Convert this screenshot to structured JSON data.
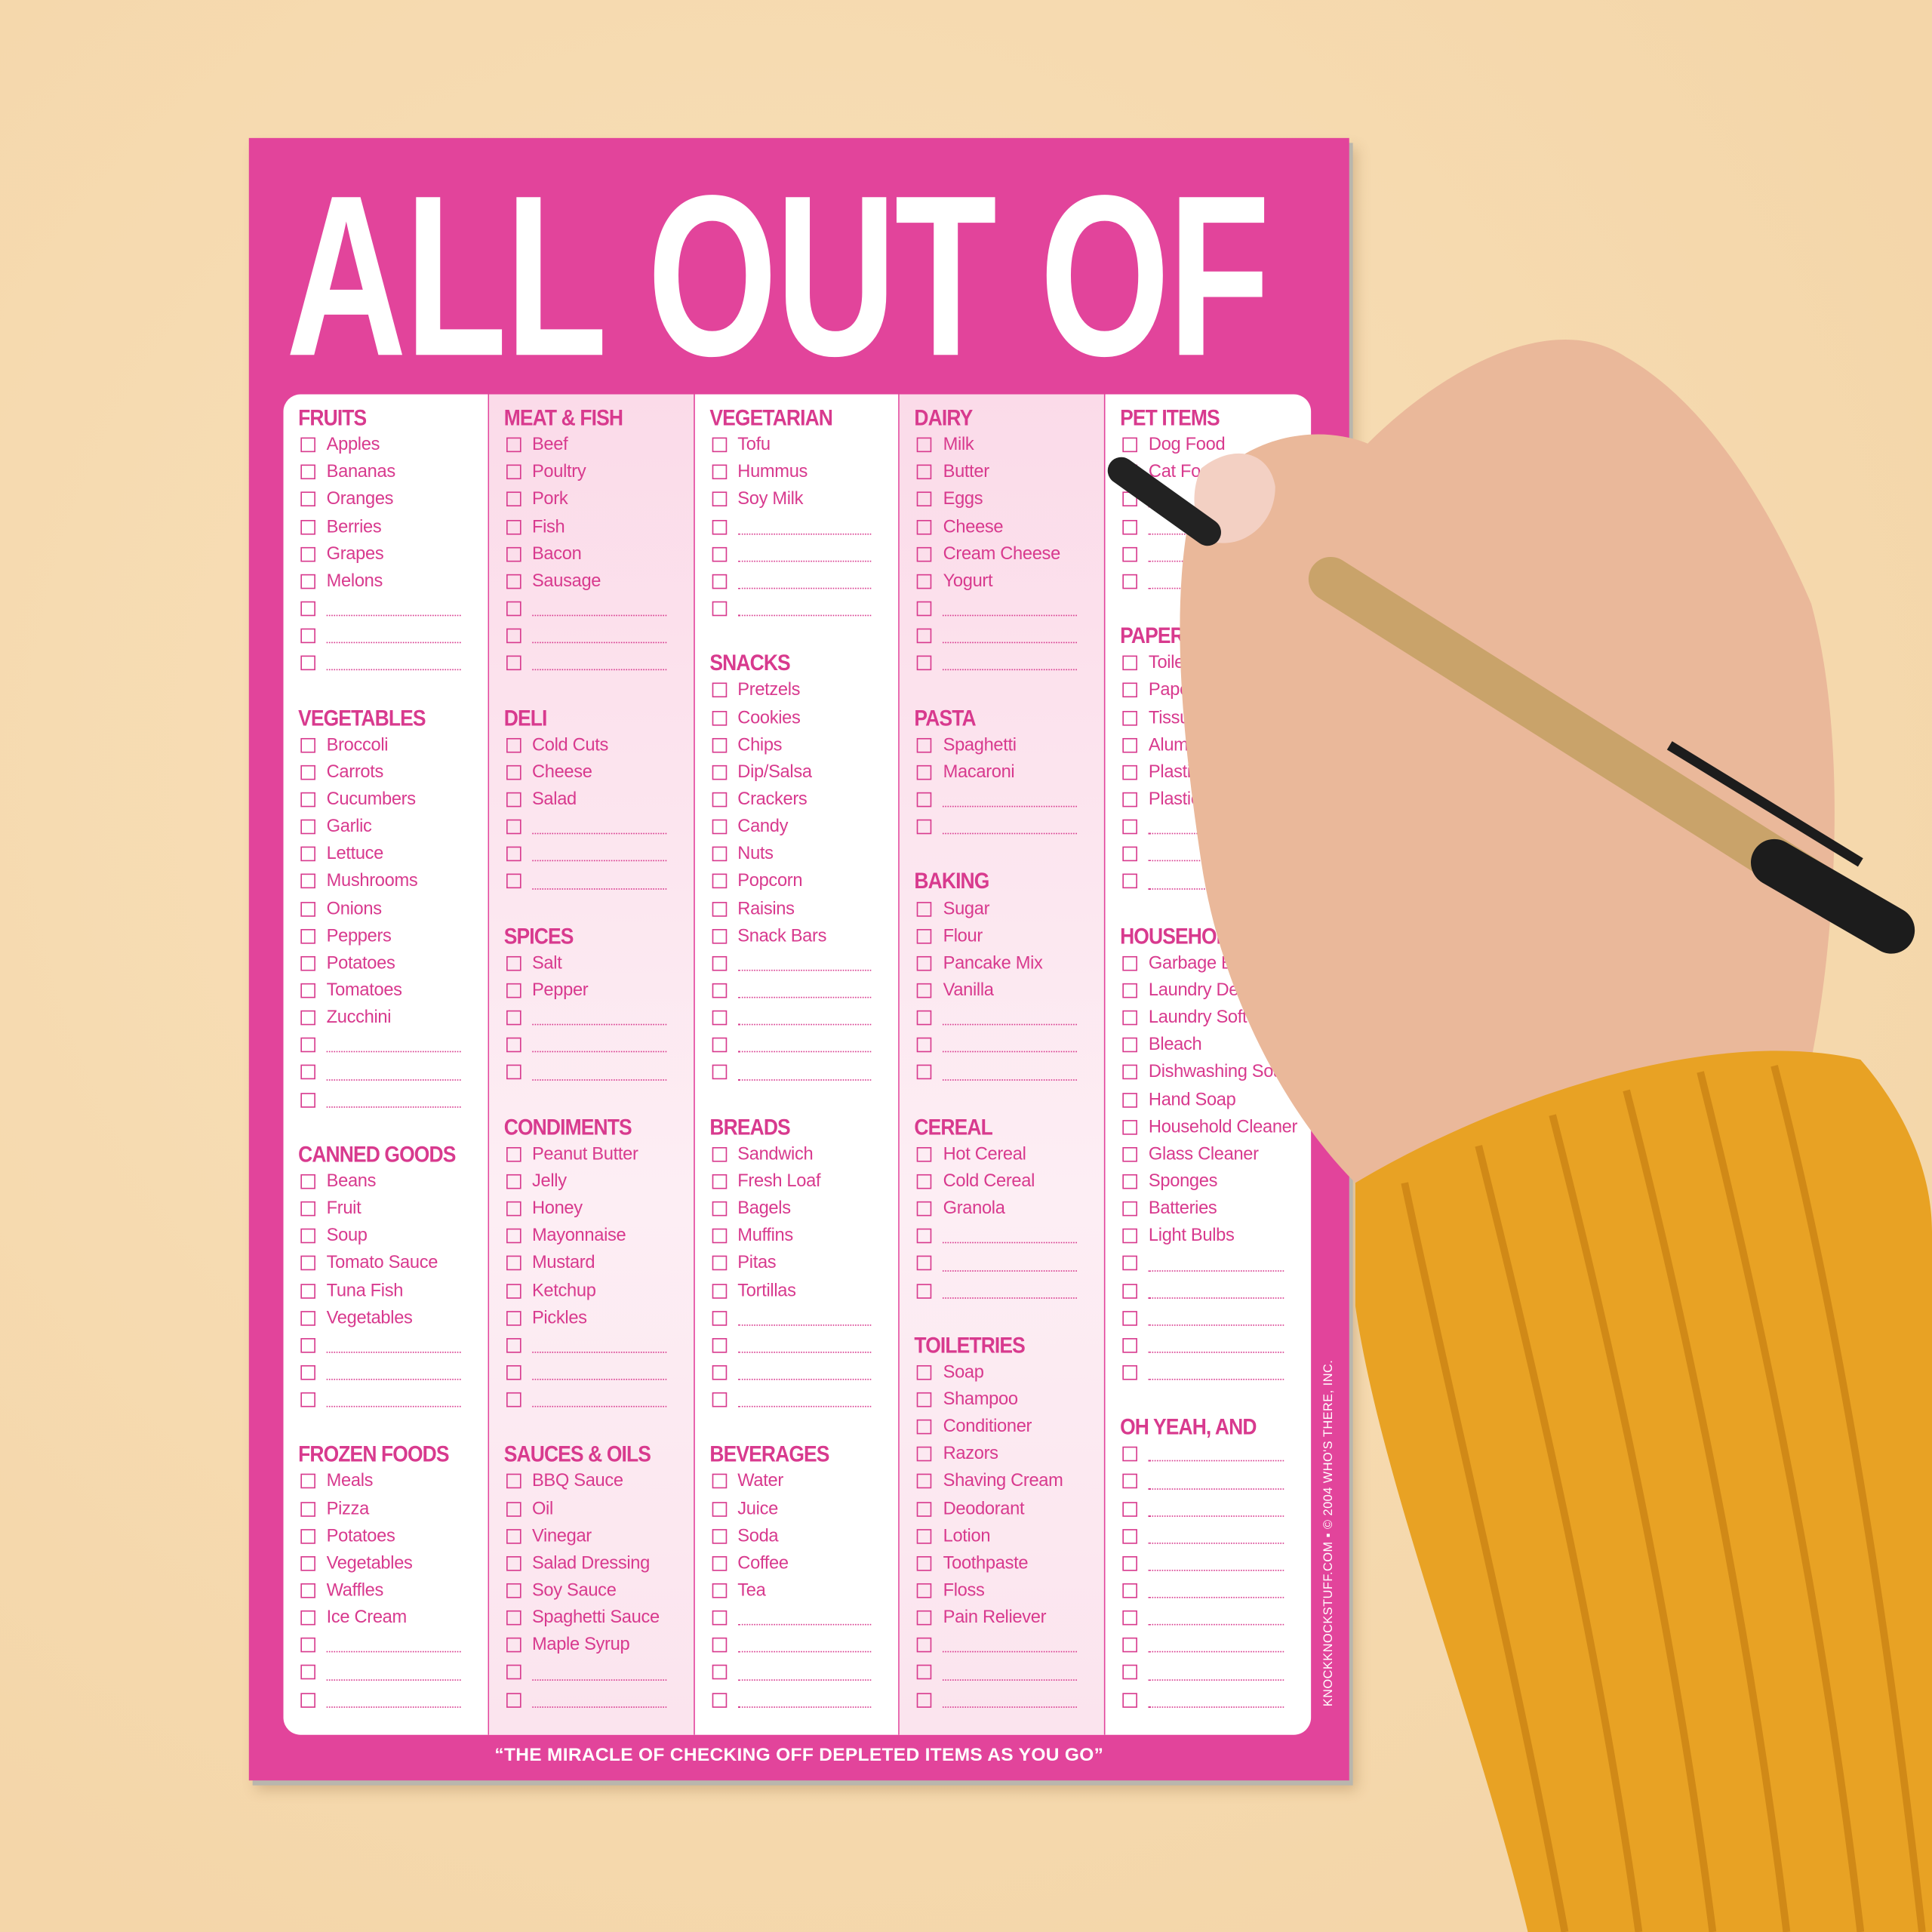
{
  "title": "ALL OUT OF",
  "footer_tagline": "“THE MIRACLE OF CHECKING OFF DEPLETED ITEMS AS YOU GO”",
  "copyright": "KNOCKKNOCKSTUFF.COM ▪ © 2004 WHO'S THERE, INC.",
  "colors": {
    "pad": "#e2449b",
    "text": "#d83a8e",
    "background": "#f6dab0",
    "sleeve": "#e8a224"
  },
  "columns": [
    {
      "sections": [
        {
          "title": "FRUITS",
          "items": [
            "Apples",
            "Bananas",
            "Oranges",
            "Berries",
            "Grapes",
            "Melons",
            "",
            "",
            ""
          ]
        },
        {
          "title": "VEGETABLES",
          "items": [
            "Broccoli",
            "Carrots",
            "Cucumbers",
            "Garlic",
            "Lettuce",
            "Mushrooms",
            "Onions",
            "Peppers",
            "Potatoes",
            "Tomatoes",
            "Zucchini",
            "",
            "",
            ""
          ]
        },
        {
          "title": "CANNED GOODS",
          "items": [
            "Beans",
            "Fruit",
            "Soup",
            "Tomato Sauce",
            "Tuna Fish",
            "Vegetables",
            "",
            "",
            ""
          ]
        },
        {
          "title": "FROZEN FOODS",
          "items": [
            "Meals",
            "Pizza",
            "Potatoes",
            "Vegetables",
            "Waffles",
            "Ice Cream",
            "",
            "",
            ""
          ]
        }
      ]
    },
    {
      "sections": [
        {
          "title": "MEAT & FISH",
          "items": [
            "Beef",
            "Poultry",
            "Pork",
            "Fish",
            "Bacon",
            "Sausage",
            "",
            "",
            ""
          ]
        },
        {
          "title": "DELI",
          "items": [
            "Cold Cuts",
            "Cheese",
            "Salad",
            "",
            "",
            ""
          ]
        },
        {
          "title": "SPICES",
          "items": [
            "Salt",
            "Pepper",
            "",
            "",
            ""
          ]
        },
        {
          "title": "CONDIMENTS",
          "items": [
            "Peanut Butter",
            "Jelly",
            "Honey",
            "Mayonnaise",
            "Mustard",
            "Ketchup",
            "Pickles",
            "",
            "",
            ""
          ]
        },
        {
          "title": "SAUCES & OILS",
          "items": [
            "BBQ Sauce",
            "Oil",
            "Vinegar",
            "Salad Dressing",
            "Soy Sauce",
            "Spaghetti Sauce",
            "Maple Syrup",
            "",
            ""
          ]
        }
      ]
    },
    {
      "sections": [
        {
          "title": "VEGETARIAN",
          "items": [
            "Tofu",
            "Hummus",
            "Soy Milk",
            "",
            "",
            "",
            ""
          ]
        },
        {
          "title": "SNACKS",
          "items": [
            "Pretzels",
            "Cookies",
            "Chips",
            "Dip/Salsa",
            "Crackers",
            "Candy",
            "Nuts",
            "Popcorn",
            "Raisins",
            "Snack Bars",
            "",
            "",
            "",
            "",
            ""
          ]
        },
        {
          "title": "BREADS",
          "items": [
            "Sandwich",
            "Fresh Loaf",
            "Bagels",
            "Muffins",
            "Pitas",
            "Tortillas",
            "",
            "",
            "",
            ""
          ]
        },
        {
          "title": "BEVERAGES",
          "items": [
            "Water",
            "Juice",
            "Soda",
            "Coffee",
            "Tea",
            "",
            "",
            "",
            ""
          ]
        }
      ]
    },
    {
      "sections": [
        {
          "title": "DAIRY",
          "items": [
            "Milk",
            "Butter",
            "Eggs",
            "Cheese",
            "Cream Cheese",
            "Yogurt",
            "",
            "",
            ""
          ]
        },
        {
          "title": "PASTA",
          "items": [
            "Spaghetti",
            "Macaroni",
            "",
            ""
          ]
        },
        {
          "title": "BAKING",
          "items": [
            "Sugar",
            "Flour",
            "Pancake Mix",
            "Vanilla",
            "",
            "",
            ""
          ]
        },
        {
          "title": "CEREAL",
          "items": [
            "Hot Cereal",
            "Cold Cereal",
            "Granola",
            "",
            "",
            ""
          ]
        },
        {
          "title": "TOILETRIES",
          "items": [
            "Soap",
            "Shampoo",
            "Conditioner",
            "Razors",
            "Shaving Cream",
            "Deodorant",
            "Lotion",
            "Toothpaste",
            "Floss",
            "Pain Reliever",
            "",
            "",
            ""
          ]
        }
      ]
    },
    {
      "sections": [
        {
          "title": "PET ITEMS",
          "items": [
            "Dog Food",
            "Cat Fo",
            "",
            "",
            "",
            ""
          ]
        },
        {
          "title": "PAPER",
          "items": [
            "Toilet",
            "Paper T",
            "Tissues",
            "Aluminum",
            "Plastic Wra",
            "Plastic Baggi",
            "",
            "",
            ""
          ]
        },
        {
          "title": "HOUSEHOLD",
          "items": [
            "Garbage Bags",
            "Laundry Detergent",
            "Laundry Softener",
            "Bleach",
            "Dishwashing Soap",
            "Hand Soap",
            "Household Cleaner",
            "Glass Cleaner",
            "Sponges",
            "Batteries",
            "Light Bulbs",
            "",
            "",
            "",
            "",
            ""
          ]
        },
        {
          "title": "OH YEAH, AND",
          "items": [
            "",
            "",
            "",
            "",
            "",
            "",
            "",
            "",
            "",
            ""
          ]
        }
      ]
    }
  ]
}
